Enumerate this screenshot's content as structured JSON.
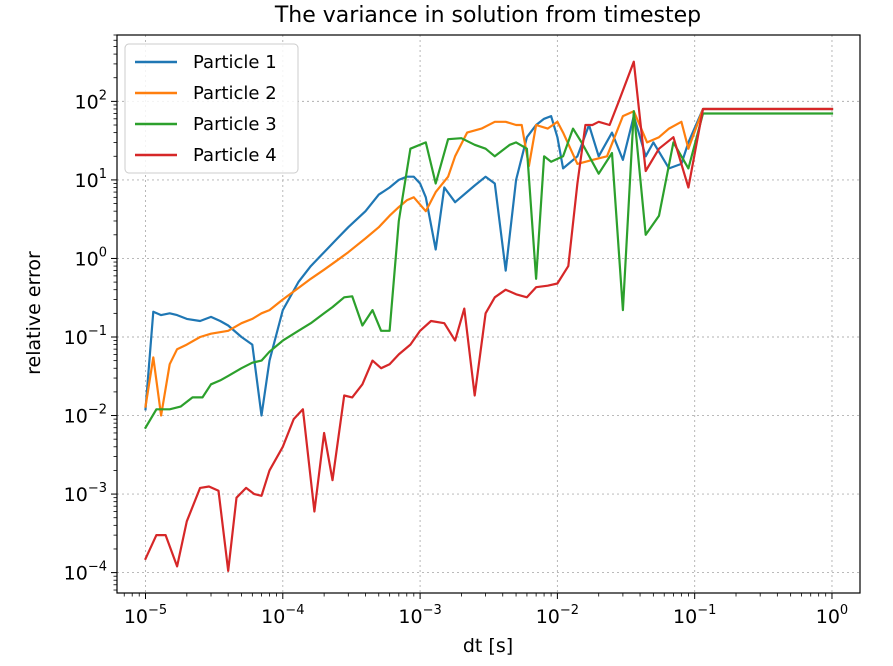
{
  "chart_data": {
    "type": "line",
    "title": "The variance in solution from timestep",
    "xlabel": "dt [s]",
    "ylabel": "relative error",
    "xscale": "log",
    "yscale": "log",
    "xlim": [
      6.2e-06,
      1.6
    ],
    "ylim": [
      5.5e-05,
      700
    ],
    "grid": true,
    "legend_position": "upper-left",
    "x_ticks": [
      {
        "value": 1e-05,
        "base": "10",
        "exp": "−5"
      },
      {
        "value": 0.0001,
        "base": "10",
        "exp": "−4"
      },
      {
        "value": 0.001,
        "base": "10",
        "exp": "−3"
      },
      {
        "value": 0.01,
        "base": "10",
        "exp": "−2"
      },
      {
        "value": 0.1,
        "base": "10",
        "exp": "−1"
      },
      {
        "value": 1,
        "base": "10",
        "exp": "0"
      }
    ],
    "y_ticks": [
      {
        "value": 0.0001,
        "base": "10",
        "exp": "−4"
      },
      {
        "value": 0.001,
        "base": "10",
        "exp": "−3"
      },
      {
        "value": 0.01,
        "base": "10",
        "exp": "−2"
      },
      {
        "value": 0.1,
        "base": "10",
        "exp": "−1"
      },
      {
        "value": 1,
        "base": "10",
        "exp": "0"
      },
      {
        "value": 10,
        "base": "10",
        "exp": "1"
      },
      {
        "value": 100,
        "base": "10",
        "exp": "2"
      }
    ],
    "series": [
      {
        "name": "Particle 1",
        "color": "#1f77b4",
        "points": [
          [
            1e-05,
            0.012
          ],
          [
            1.14e-05,
            0.21
          ],
          [
            1.3e-05,
            0.19
          ],
          [
            1.5e-05,
            0.2
          ],
          [
            1.7e-05,
            0.19
          ],
          [
            2e-05,
            0.17
          ],
          [
            2.5e-05,
            0.16
          ],
          [
            3e-05,
            0.18
          ],
          [
            3.5e-05,
            0.16
          ],
          [
            4e-05,
            0.14
          ],
          [
            5e-05,
            0.1
          ],
          [
            6e-05,
            0.08
          ],
          [
            7e-05,
            0.01
          ],
          [
            8e-05,
            0.05
          ],
          [
            0.0001,
            0.22
          ],
          [
            0.00013,
            0.5
          ],
          [
            0.00016,
            0.8
          ],
          [
            0.0002,
            1.2
          ],
          [
            0.00025,
            1.8
          ],
          [
            0.0003,
            2.5
          ],
          [
            0.0004,
            4.0
          ],
          [
            0.0005,
            6.5
          ],
          [
            0.0006,
            8.0
          ],
          [
            0.0007,
            10
          ],
          [
            0.0008,
            11
          ],
          [
            0.0009,
            11
          ],
          [
            0.001,
            9
          ],
          [
            0.0011,
            6
          ],
          [
            0.0013,
            1.3
          ],
          [
            0.0015,
            8
          ],
          [
            0.0018,
            5.2
          ],
          [
            0.0025,
            8.5
          ],
          [
            0.003,
            11
          ],
          [
            0.0035,
            9
          ],
          [
            0.0042,
            0.7
          ],
          [
            0.005,
            10
          ],
          [
            0.006,
            35
          ],
          [
            0.007,
            50
          ],
          [
            0.008,
            60
          ],
          [
            0.009,
            65
          ],
          [
            0.01,
            35
          ],
          [
            0.011,
            14
          ],
          [
            0.014,
            20
          ],
          [
            0.017,
            50
          ],
          [
            0.02,
            20
          ],
          [
            0.025,
            40
          ],
          [
            0.03,
            18
          ],
          [
            0.036,
            65
          ],
          [
            0.044,
            20
          ],
          [
            0.05,
            30
          ],
          [
            0.065,
            14
          ],
          [
            0.08,
            16
          ],
          [
            0.09,
            30
          ],
          [
            0.115,
            80
          ],
          [
            1,
            80
          ]
        ]
      },
      {
        "name": "Particle 2",
        "color": "#ff7f0e",
        "points": [
          [
            1e-05,
            0.013
          ],
          [
            1.14e-05,
            0.055
          ],
          [
            1.3e-05,
            0.01
          ],
          [
            1.5e-05,
            0.045
          ],
          [
            1.7e-05,
            0.07
          ],
          [
            2e-05,
            0.08
          ],
          [
            2.5e-05,
            0.1
          ],
          [
            3e-05,
            0.11
          ],
          [
            4e-05,
            0.12
          ],
          [
            5e-05,
            0.15
          ],
          [
            6e-05,
            0.17
          ],
          [
            7e-05,
            0.2
          ],
          [
            8e-05,
            0.22
          ],
          [
            0.0001,
            0.3
          ],
          [
            0.00013,
            0.42
          ],
          [
            0.00016,
            0.55
          ],
          [
            0.0002,
            0.72
          ],
          [
            0.00025,
            0.95
          ],
          [
            0.0003,
            1.2
          ],
          [
            0.0004,
            1.8
          ],
          [
            0.0005,
            2.5
          ],
          [
            0.0006,
            3.5
          ],
          [
            0.0007,
            4.5
          ],
          [
            0.0008,
            5.5
          ],
          [
            0.0009,
            6
          ],
          [
            0.0011,
            4
          ],
          [
            0.0013,
            7
          ],
          [
            0.0016,
            11
          ],
          [
            0.0018,
            20
          ],
          [
            0.0022,
            40
          ],
          [
            0.0028,
            45
          ],
          [
            0.0035,
            55
          ],
          [
            0.0042,
            55
          ],
          [
            0.005,
            50
          ],
          [
            0.0055,
            50
          ],
          [
            0.0062,
            15
          ],
          [
            0.007,
            50
          ],
          [
            0.0085,
            45
          ],
          [
            0.01,
            55
          ],
          [
            0.011,
            40
          ],
          [
            0.014,
            16
          ],
          [
            0.018,
            18
          ],
          [
            0.023,
            20
          ],
          [
            0.03,
            65
          ],
          [
            0.036,
            75
          ],
          [
            0.045,
            30
          ],
          [
            0.055,
            35
          ],
          [
            0.065,
            45
          ],
          [
            0.08,
            55
          ],
          [
            0.09,
            25
          ],
          [
            0.115,
            80
          ],
          [
            1,
            80
          ]
        ]
      },
      {
        "name": "Particle 3",
        "color": "#2ca02c",
        "points": [
          [
            1e-05,
            0.007
          ],
          [
            1.2e-05,
            0.012
          ],
          [
            1.5e-05,
            0.012
          ],
          [
            1.8e-05,
            0.013
          ],
          [
            2.2e-05,
            0.017
          ],
          [
            2.6e-05,
            0.017
          ],
          [
            3e-05,
            0.025
          ],
          [
            3.5e-05,
            0.028
          ],
          [
            4e-05,
            0.032
          ],
          [
            5e-05,
            0.04
          ],
          [
            6e-05,
            0.047
          ],
          [
            7e-05,
            0.05
          ],
          [
            8e-05,
            0.065
          ],
          [
            0.0001,
            0.09
          ],
          [
            0.00013,
            0.12
          ],
          [
            0.00016,
            0.15
          ],
          [
            0.0002,
            0.2
          ],
          [
            0.00023,
            0.24
          ],
          [
            0.00028,
            0.32
          ],
          [
            0.00032,
            0.33
          ],
          [
            0.00038,
            0.14
          ],
          [
            0.00045,
            0.22
          ],
          [
            0.00052,
            0.12
          ],
          [
            0.0006,
            0.12
          ],
          [
            0.0007,
            3
          ],
          [
            0.00085,
            25
          ],
          [
            0.0011,
            30
          ],
          [
            0.0013,
            9
          ],
          [
            0.0016,
            33
          ],
          [
            0.002,
            34
          ],
          [
            0.0025,
            28
          ],
          [
            0.003,
            25
          ],
          [
            0.0035,
            20
          ],
          [
            0.0045,
            28
          ],
          [
            0.005,
            30
          ],
          [
            0.006,
            25
          ],
          [
            0.007,
            0.55
          ],
          [
            0.008,
            20
          ],
          [
            0.009,
            17
          ],
          [
            0.011,
            20
          ],
          [
            0.013,
            45
          ],
          [
            0.015,
            30
          ],
          [
            0.02,
            12
          ],
          [
            0.025,
            22
          ],
          [
            0.03,
            0.22
          ],
          [
            0.036,
            75
          ],
          [
            0.044,
            2
          ],
          [
            0.055,
            3.5
          ],
          [
            0.07,
            30
          ],
          [
            0.09,
            14
          ],
          [
            0.115,
            70
          ],
          [
            1,
            70
          ]
        ]
      },
      {
        "name": "Particle 4",
        "color": "#d62728",
        "points": [
          [
            1e-05,
            0.00015
          ],
          [
            1.2e-05,
            0.0003
          ],
          [
            1.4e-05,
            0.0003
          ],
          [
            1.7e-05,
            0.00012
          ],
          [
            2e-05,
            0.00045
          ],
          [
            2.5e-05,
            0.0012
          ],
          [
            2.9e-05,
            0.00125
          ],
          [
            3.4e-05,
            0.0011
          ],
          [
            4e-05,
            0.000105
          ],
          [
            4.6e-05,
            0.0009
          ],
          [
            5.4e-05,
            0.0012
          ],
          [
            6.2e-05,
            0.001
          ],
          [
            7e-05,
            0.00095
          ],
          [
            8e-05,
            0.002
          ],
          [
            0.0001,
            0.004
          ],
          [
            0.00012,
            0.009
          ],
          [
            0.00014,
            0.012
          ],
          [
            0.00017,
            0.0006
          ],
          [
            0.0002,
            0.006
          ],
          [
            0.00023,
            0.0015
          ],
          [
            0.00028,
            0.018
          ],
          [
            0.00032,
            0.017
          ],
          [
            0.00038,
            0.025
          ],
          [
            0.00045,
            0.05
          ],
          [
            0.00052,
            0.04
          ],
          [
            0.0006,
            0.045
          ],
          [
            0.0007,
            0.06
          ],
          [
            0.00085,
            0.08
          ],
          [
            0.001,
            0.12
          ],
          [
            0.0012,
            0.16
          ],
          [
            0.0015,
            0.15
          ],
          [
            0.0018,
            0.09
          ],
          [
            0.0021,
            0.23
          ],
          [
            0.0025,
            0.018
          ],
          [
            0.003,
            0.2
          ],
          [
            0.0035,
            0.32
          ],
          [
            0.0042,
            0.4
          ],
          [
            0.005,
            0.35
          ],
          [
            0.006,
            0.32
          ],
          [
            0.007,
            0.43
          ],
          [
            0.0085,
            0.45
          ],
          [
            0.01,
            0.48
          ],
          [
            0.012,
            0.8
          ],
          [
            0.014,
            9
          ],
          [
            0.016,
            50
          ],
          [
            0.018,
            50
          ],
          [
            0.02,
            55
          ],
          [
            0.024,
            50
          ],
          [
            0.028,
            100
          ],
          [
            0.036,
            320
          ],
          [
            0.044,
            13
          ],
          [
            0.055,
            25
          ],
          [
            0.07,
            35
          ],
          [
            0.09,
            8
          ],
          [
            0.115,
            80
          ],
          [
            1,
            80
          ]
        ]
      }
    ]
  }
}
